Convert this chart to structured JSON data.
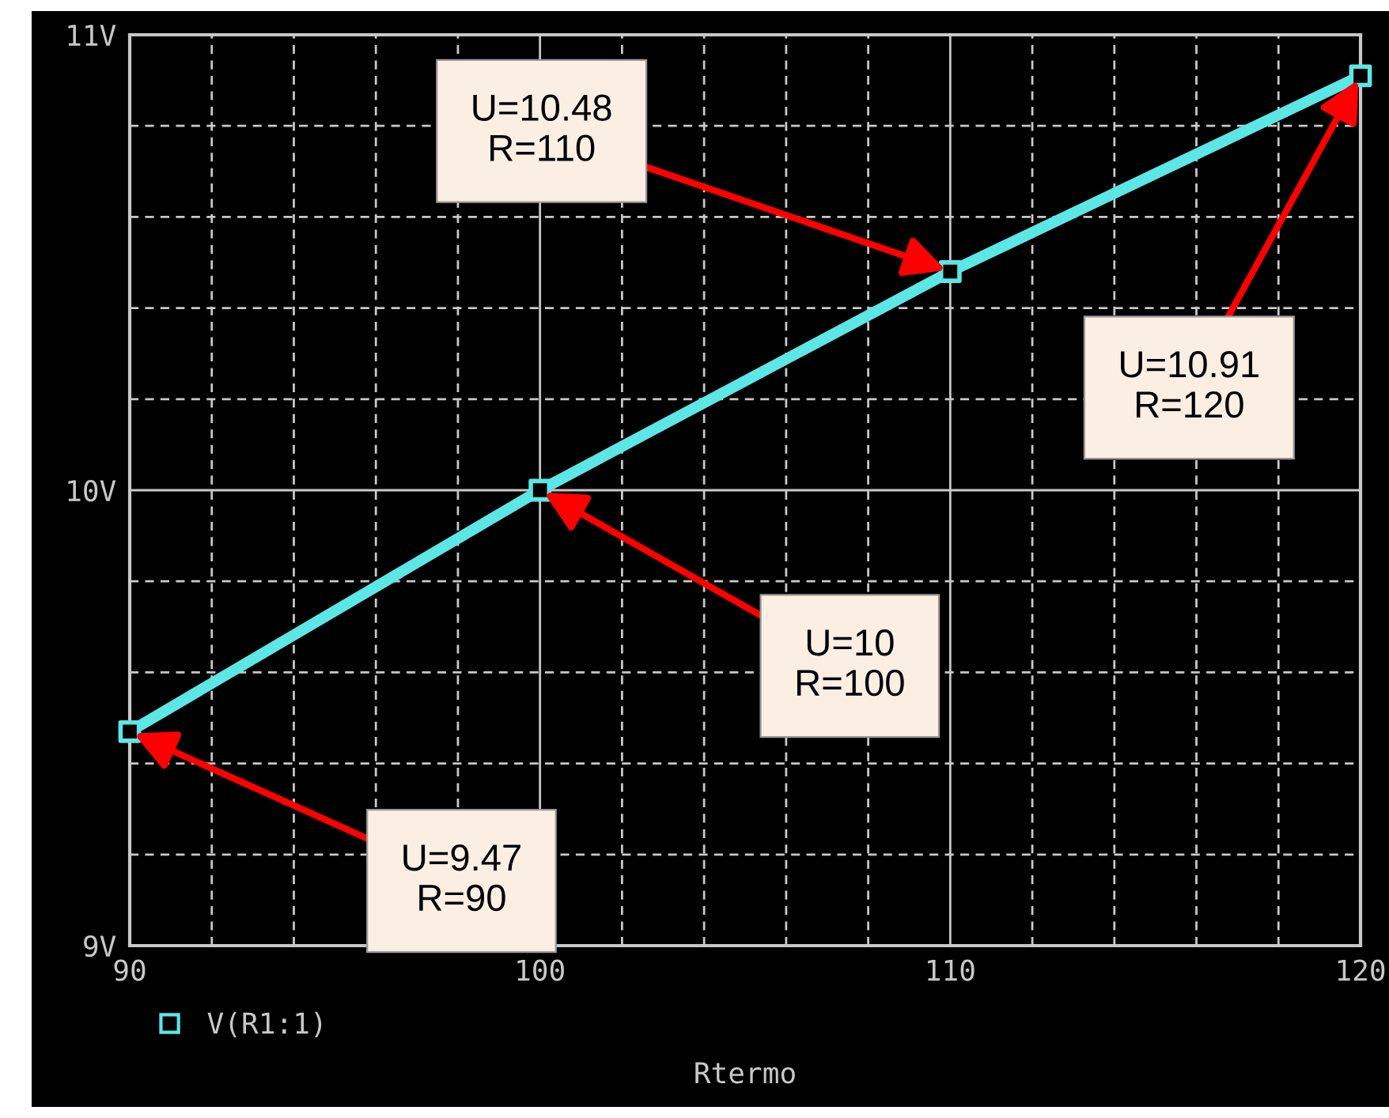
{
  "chart_data": {
    "type": "line",
    "xlabel": "Rtermo",
    "x": [
      90,
      100,
      110,
      120
    ],
    "series": [
      {
        "name": "V(R1:1)",
        "color": "#5ce6e6",
        "values": [
          9.47,
          10,
          10.48,
          10.91
        ]
      }
    ],
    "marker": "square",
    "xlim": [
      90,
      120
    ],
    "ylim": [
      9,
      11
    ],
    "xticks": [
      90,
      {
        "value": 92,
        "label": null
      },
      {
        "value": 94,
        "label": null
      },
      {
        "value": 96,
        "label": null
      },
      {
        "value": 98,
        "label": null
      },
      100,
      {
        "value": 102,
        "label": null
      },
      {
        "value": 104,
        "label": null
      },
      {
        "value": 106,
        "label": null
      },
      {
        "value": 108,
        "label": null
      },
      110,
      {
        "value": 112,
        "label": null
      },
      {
        "value": 114,
        "label": null
      },
      {
        "value": 116,
        "label": null
      },
      {
        "value": 118,
        "label": null
      },
      120
    ],
    "yticks": [
      {
        "value": 9,
        "label": "9V"
      },
      {
        "value": 9.2,
        "label": null
      },
      {
        "value": 9.4,
        "label": null
      },
      {
        "value": 9.6,
        "label": null
      },
      {
        "value": 9.8,
        "label": null
      },
      {
        "value": 10,
        "label": "10V"
      },
      {
        "value": 10.2,
        "label": null
      },
      {
        "value": 10.4,
        "label": null
      },
      {
        "value": 10.6,
        "label": null
      },
      {
        "value": 10.8,
        "label": null
      },
      {
        "value": 11,
        "label": "11V"
      }
    ],
    "grid": true,
    "legend": "bottom left",
    "annotations": [
      {
        "text": "U=10.48\nR=110",
        "x": 110,
        "y": 10.48
      },
      {
        "text": "U=10.91\nR=120",
        "x": 120,
        "y": 10.91
      },
      {
        "text": "U=10\nR=100",
        "x": 100,
        "y": 10
      },
      {
        "text": "U=9.47\nR=90",
        "x": 90,
        "y": 9.47
      }
    ]
  }
}
